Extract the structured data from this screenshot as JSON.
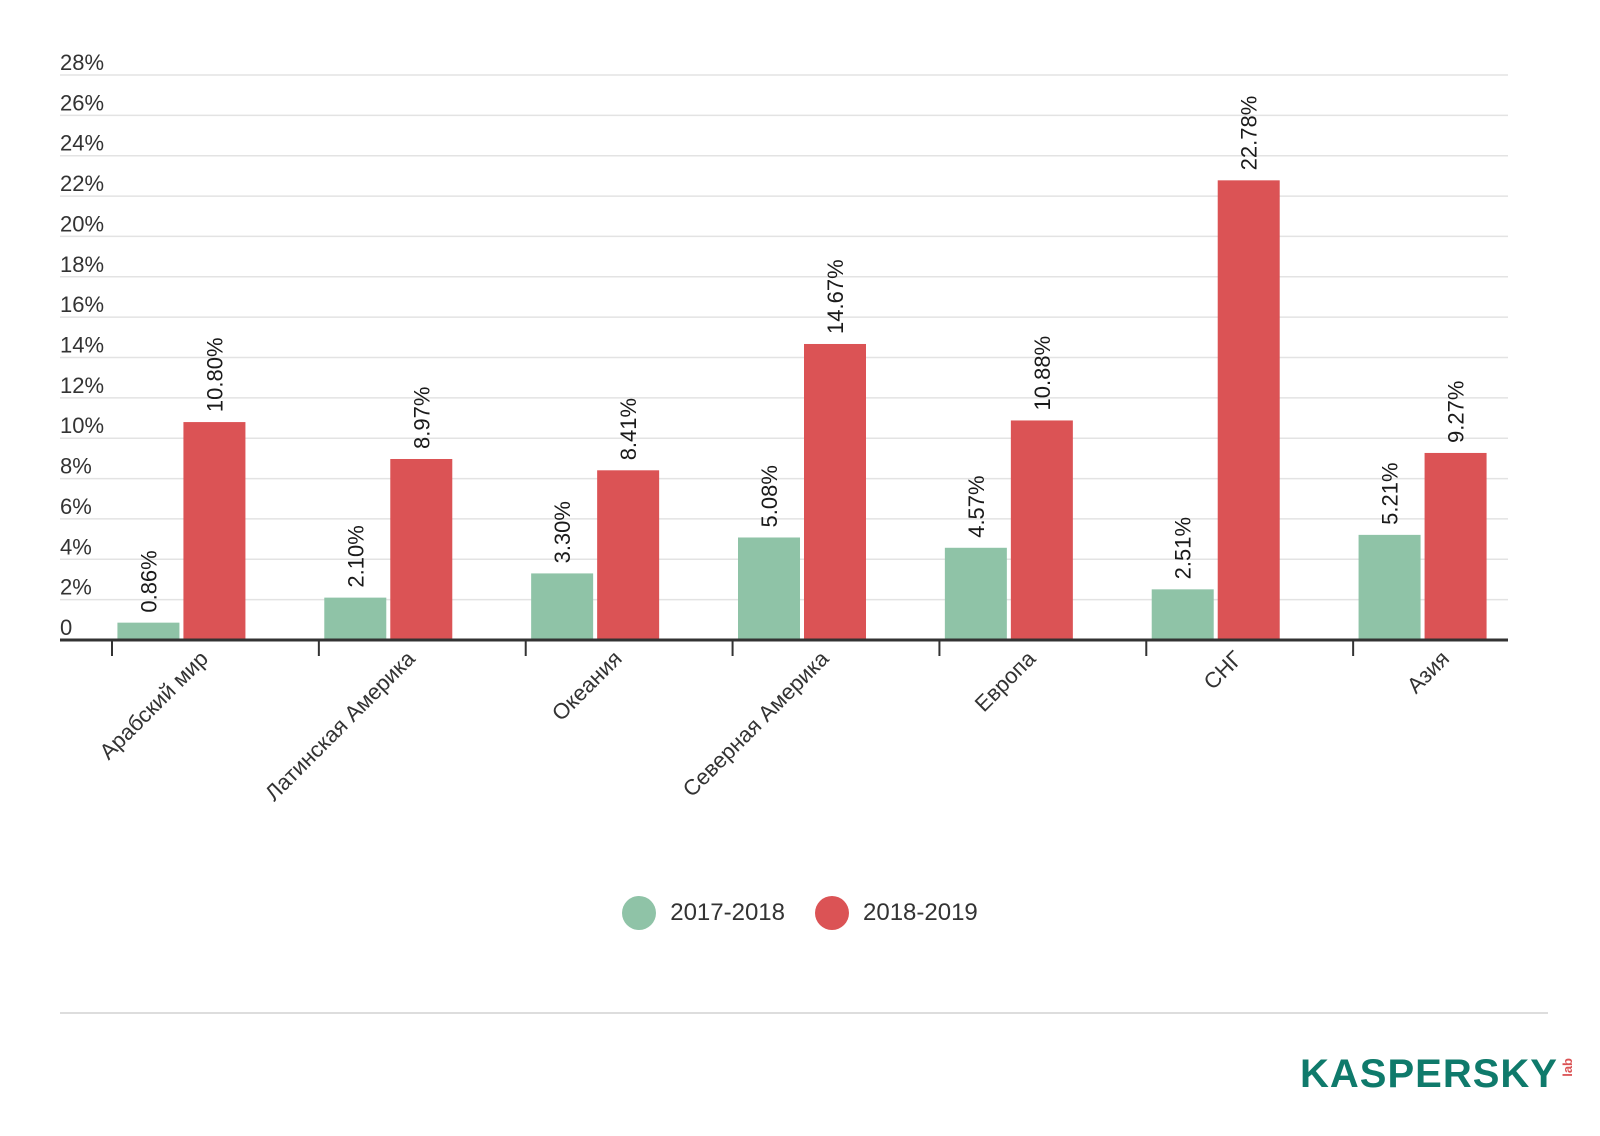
{
  "colors": {
    "series1": "#8fc3a7",
    "series2": "#db5355",
    "logo": "#0f7a6b",
    "logo_accent": "#db5355"
  },
  "chart_data": {
    "type": "bar",
    "categories": [
      "Арабский мир",
      "Латинская Америка",
      "Океания",
      "Северная Америка",
      "Европа",
      "СНГ",
      "Азия"
    ],
    "series": [
      {
        "name": "2017-2018",
        "values": [
          0.86,
          2.1,
          3.3,
          5.08,
          4.57,
          2.51,
          5.21
        ],
        "labels": [
          "0.86%",
          "2.10%",
          "3.30%",
          "5.08%",
          "4.57%",
          "2.51%",
          "5.21%"
        ]
      },
      {
        "name": "2018-2019",
        "values": [
          10.8,
          8.97,
          8.41,
          14.67,
          10.88,
          22.78,
          9.27
        ],
        "labels": [
          "10.80%",
          "8.97%",
          "8.41%",
          "14.67%",
          "10.88%",
          "22.78%",
          "9.27%"
        ]
      }
    ],
    "ylim": [
      0,
      28
    ],
    "yticks": [
      0,
      2,
      4,
      6,
      8,
      10,
      12,
      14,
      16,
      18,
      20,
      22,
      24,
      26,
      28
    ],
    "ytick_labels": [
      "0",
      "2%",
      "4%",
      "6%",
      "8%",
      "10%",
      "12%",
      "14%",
      "16%",
      "18%",
      "20%",
      "22%",
      "24%",
      "26%",
      "28%"
    ],
    "grid": true,
    "legend": "bottom"
  },
  "logo": {
    "main": "KASPERSKY",
    "sub": "lab"
  }
}
